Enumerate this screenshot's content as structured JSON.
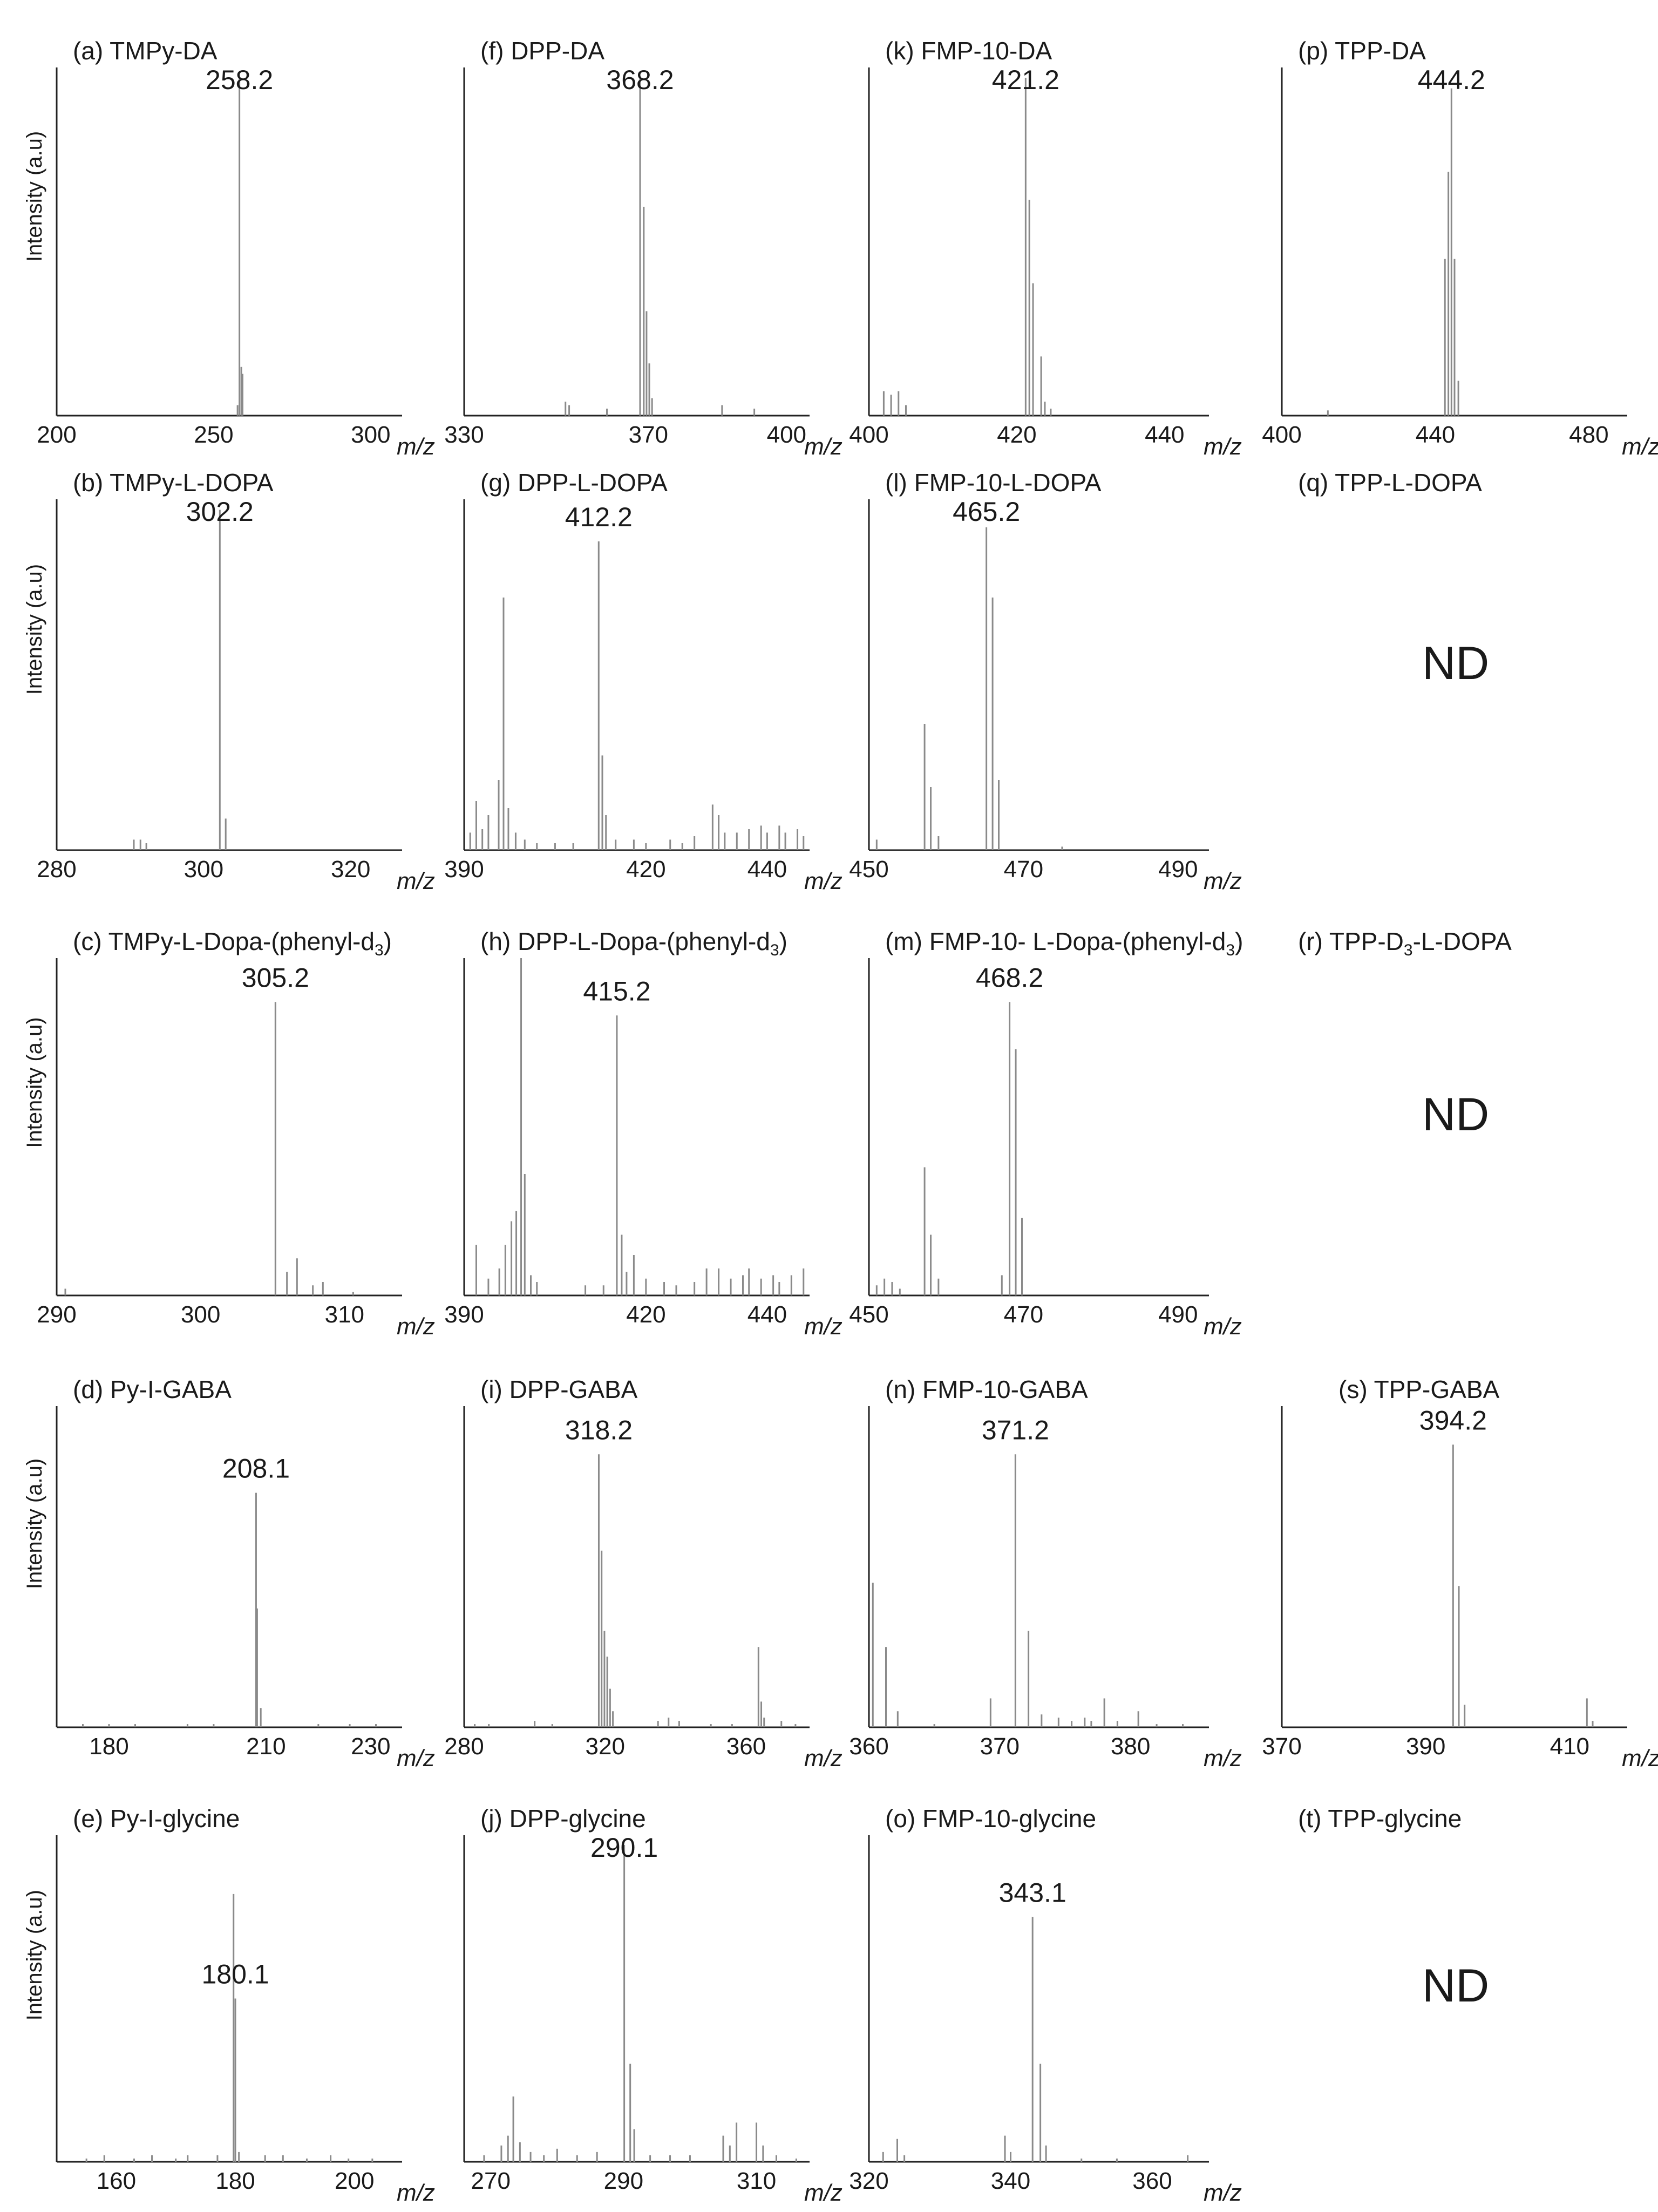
{
  "y_axis_label": "Intensity (a.u)",
  "x_unit_label": "m/z",
  "colors": {
    "axis": "#222222",
    "peak": "#8a8a8a",
    "text": "#1a1a1a"
  },
  "chart_data": [
    {
      "id": "a",
      "type": "bar",
      "title": "(a) TMPy-DA",
      "xlim": [
        200,
        310
      ],
      "xticks": [
        200,
        250,
        300
      ],
      "x_label": "m/z",
      "y_label": "Intensity (a.u)",
      "peak_label": "258.2",
      "peaks": [
        [
          258.2,
          0.97
        ],
        [
          258.8,
          0.14
        ],
        [
          259.2,
          0.12
        ],
        [
          257.6,
          0.03
        ]
      ]
    },
    {
      "id": "f",
      "type": "bar",
      "title": "(f) DPP-DA",
      "xlim": [
        330,
        405
      ],
      "xticks": [
        330,
        370,
        400
      ],
      "x_label": "m/z",
      "peak_label": "368.2",
      "peaks": [
        [
          368.2,
          0.97
        ],
        [
          369.0,
          0.6
        ],
        [
          369.6,
          0.3
        ],
        [
          370.2,
          0.15
        ],
        [
          370.8,
          0.05
        ],
        [
          352,
          0.04
        ],
        [
          352.8,
          0.03
        ],
        [
          386,
          0.03
        ],
        [
          393,
          0.02
        ],
        [
          361,
          0.02
        ]
      ]
    },
    {
      "id": "k",
      "type": "bar",
      "title": "(k) FMP-10-DA",
      "xlim": [
        400,
        446
      ],
      "xticks": [
        400,
        420,
        440
      ],
      "x_label": "m/z",
      "peak_label": "421.2",
      "peaks": [
        [
          421.2,
          0.97
        ],
        [
          421.7,
          0.62
        ],
        [
          422.2,
          0.38
        ],
        [
          423.3,
          0.17
        ],
        [
          423.8,
          0.04
        ],
        [
          402,
          0.07
        ],
        [
          403,
          0.06
        ],
        [
          404,
          0.07
        ],
        [
          405,
          0.03
        ],
        [
          424.6,
          0.02
        ]
      ]
    },
    {
      "id": "p",
      "type": "bar",
      "title": "(p) TPP-DA",
      "xlim": [
        400,
        490
      ],
      "xticks": [
        400,
        440,
        480
      ],
      "x_label": "m/z",
      "peak_label": "444.2",
      "peaks": [
        [
          442.5,
          0.45
        ],
        [
          443.4,
          0.7
        ],
        [
          444.2,
          0.94
        ],
        [
          445.0,
          0.45
        ],
        [
          446.0,
          0.1
        ],
        [
          412,
          0.015
        ]
      ]
    },
    {
      "id": "b",
      "type": "bar",
      "title": "(b) TMPy-L-DOPA",
      "xlim": [
        280,
        327
      ],
      "xticks": [
        280,
        300,
        320
      ],
      "x_label": "m/z",
      "y_label": "Intensity (a.u)",
      "peak_label": "302.2",
      "peaks": [
        [
          302.2,
          0.97
        ],
        [
          303.0,
          0.09
        ],
        [
          290.5,
          0.03
        ],
        [
          291.4,
          0.03
        ],
        [
          292.2,
          0.02
        ]
      ]
    },
    {
      "id": "g",
      "type": "bar",
      "title": "(g) DPP-L-DOPA",
      "xlim": [
        390,
        447
      ],
      "xticks": [
        390,
        420,
        440
      ],
      "x_label": "m/z",
      "peak_label": "412.2",
      "peaks": [
        [
          412.2,
          0.88
        ],
        [
          412.8,
          0.27
        ],
        [
          413.4,
          0.1
        ],
        [
          396.5,
          0.72
        ],
        [
          395.7,
          0.2
        ],
        [
          397.3,
          0.12
        ],
        [
          392,
          0.14
        ],
        [
          394,
          0.1
        ],
        [
          398.5,
          0.05
        ],
        [
          391,
          0.05
        ],
        [
          393,
          0.06
        ],
        [
          400,
          0.03
        ],
        [
          402,
          0.02
        ],
        [
          405,
          0.02
        ],
        [
          408,
          0.02
        ],
        [
          415,
          0.03
        ],
        [
          418,
          0.03
        ],
        [
          420,
          0.02
        ],
        [
          424,
          0.03
        ],
        [
          426,
          0.02
        ],
        [
          428,
          0.04
        ],
        [
          431,
          0.13
        ],
        [
          432,
          0.1
        ],
        [
          433,
          0.05
        ],
        [
          435,
          0.05
        ],
        [
          437,
          0.06
        ],
        [
          439,
          0.07
        ],
        [
          440,
          0.05
        ],
        [
          442,
          0.07
        ],
        [
          443,
          0.05
        ],
        [
          445,
          0.06
        ],
        [
          446,
          0.04
        ]
      ]
    },
    {
      "id": "l",
      "type": "bar",
      "title": "(l) FMP-10-L-DOPA",
      "xlim": [
        450,
        494
      ],
      "xticks": [
        450,
        470,
        490
      ],
      "x_label": "m/z",
      "peak_label": "465.2",
      "peaks": [
        [
          465.2,
          0.92
        ],
        [
          466.0,
          0.72
        ],
        [
          466.8,
          0.2
        ],
        [
          457.2,
          0.36
        ],
        [
          458.0,
          0.18
        ],
        [
          459.0,
          0.04
        ],
        [
          451,
          0.03
        ],
        [
          475,
          0.01
        ]
      ]
    },
    {
      "id": "q",
      "type": "none",
      "title": "(q) TPP-L-DOPA",
      "not_detected": "ND"
    },
    {
      "id": "c",
      "type": "bar",
      "title": "(c) TMPy-L-Dopa-(phenyl-d3)",
      "xlim": [
        290,
        314
      ],
      "xticks": [
        290,
        300,
        310
      ],
      "x_label": "m/z",
      "y_label": "Intensity (a.u)",
      "peak_label": "305.2",
      "peaks": [
        [
          305.2,
          0.87
        ],
        [
          306.0,
          0.07
        ],
        [
          306.7,
          0.11
        ],
        [
          307.8,
          0.03
        ],
        [
          308.5,
          0.04
        ],
        [
          290.6,
          0.02
        ],
        [
          310.6,
          0.01
        ]
      ]
    },
    {
      "id": "h",
      "type": "bar",
      "title": "(h) DPP-L-Dopa-(phenyl-d3)",
      "xlim": [
        390,
        447
      ],
      "xticks": [
        390,
        420,
        440
      ],
      "x_label": "m/z",
      "peak_label": "415.2",
      "peaks": [
        [
          399.4,
          1.0
        ],
        [
          400.0,
          0.36
        ],
        [
          398.6,
          0.25
        ],
        [
          397.8,
          0.22
        ],
        [
          396.8,
          0.15
        ],
        [
          395.8,
          0.08
        ],
        [
          392,
          0.15
        ],
        [
          394,
          0.05
        ],
        [
          401,
          0.06
        ],
        [
          402,
          0.04
        ],
        [
          415.2,
          0.83
        ],
        [
          416.0,
          0.18
        ],
        [
          416.8,
          0.07
        ],
        [
          410,
          0.03
        ],
        [
          413,
          0.03
        ],
        [
          418,
          0.12
        ],
        [
          420,
          0.05
        ],
        [
          423,
          0.04
        ],
        [
          425,
          0.03
        ],
        [
          428,
          0.04
        ],
        [
          430,
          0.08
        ],
        [
          432,
          0.08
        ],
        [
          434,
          0.05
        ],
        [
          436,
          0.06
        ],
        [
          437,
          0.08
        ],
        [
          439,
          0.05
        ],
        [
          441,
          0.06
        ],
        [
          442,
          0.04
        ],
        [
          444,
          0.06
        ],
        [
          446,
          0.08
        ]
      ]
    },
    {
      "id": "m",
      "type": "bar",
      "title": "(m) FMP-10- L-Dopa-(phenyl-d3)",
      "xlim": [
        450,
        494
      ],
      "xticks": [
        450,
        470,
        490
      ],
      "x_label": "m/z",
      "peak_label": "468.2",
      "peaks": [
        [
          468.2,
          0.87
        ],
        [
          469.0,
          0.73
        ],
        [
          469.8,
          0.23
        ],
        [
          467.2,
          0.06
        ],
        [
          457.2,
          0.38
        ],
        [
          458.0,
          0.18
        ],
        [
          459.0,
          0.05
        ],
        [
          451,
          0.03
        ],
        [
          452,
          0.05
        ],
        [
          453,
          0.04
        ],
        [
          454,
          0.02
        ]
      ]
    },
    {
      "id": "r",
      "type": "none",
      "title": "(r) TPP-D3-L-DOPA",
      "not_detected": "ND"
    },
    {
      "id": "d",
      "type": "bar",
      "title": "(d) Py-I-GABA",
      "xlim": [
        170,
        236
      ],
      "xticks": [
        180,
        210,
        230
      ],
      "x_label": "m/z",
      "y_label": "Intensity (a.u)",
      "peak_label": "208.1",
      "peaks": [
        [
          208.1,
          0.73
        ],
        [
          208.3,
          0.37
        ],
        [
          209.0,
          0.06
        ],
        [
          175,
          0.01
        ],
        [
          180,
          0.01
        ],
        [
          185,
          0.01
        ],
        [
          195,
          0.01
        ],
        [
          200,
          0.01
        ],
        [
          220,
          0.01
        ],
        [
          226,
          0.01
        ],
        [
          231,
          0.01
        ]
      ]
    },
    {
      "id": "i",
      "type": "bar",
      "title": "(i) DPP-GABA",
      "xlim": [
        280,
        378
      ],
      "xticks": [
        280,
        320,
        360
      ],
      "x_label": "m/z",
      "peak_label": "318.2",
      "peaks": [
        [
          318.2,
          0.85
        ],
        [
          319.0,
          0.55
        ],
        [
          319.8,
          0.3
        ],
        [
          320.6,
          0.22
        ],
        [
          321.4,
          0.12
        ],
        [
          322.2,
          0.05
        ],
        [
          363.5,
          0.25
        ],
        [
          364.3,
          0.08
        ],
        [
          365.1,
          0.03
        ],
        [
          283,
          0.01
        ],
        [
          287,
          0.01
        ],
        [
          300,
          0.02
        ],
        [
          305,
          0.01
        ],
        [
          335,
          0.02
        ],
        [
          338,
          0.03
        ],
        [
          341,
          0.02
        ],
        [
          350,
          0.01
        ],
        [
          356,
          0.01
        ],
        [
          370,
          0.02
        ],
        [
          374,
          0.01
        ]
      ]
    },
    {
      "id": "n",
      "type": "bar",
      "title": "(n) FMP-10-GABA",
      "xlim": [
        360,
        386
      ],
      "xticks": [
        360,
        370,
        380
      ],
      "x_label": "m/z",
      "peak_label": "371.2",
      "peaks": [
        [
          371.2,
          0.85
        ],
        [
          372.2,
          0.3
        ],
        [
          373.2,
          0.04
        ],
        [
          360.3,
          0.45
        ],
        [
          361.3,
          0.25
        ],
        [
          362.2,
          0.05
        ],
        [
          369.3,
          0.09
        ],
        [
          374.5,
          0.03
        ],
        [
          375.5,
          0.02
        ],
        [
          376.5,
          0.03
        ],
        [
          377,
          0.02
        ],
        [
          378,
          0.09
        ],
        [
          379,
          0.02
        ],
        [
          380.6,
          0.05
        ],
        [
          382,
          0.01
        ],
        [
          384,
          0.01
        ],
        [
          365,
          0.01
        ]
      ]
    },
    {
      "id": "s",
      "type": "bar",
      "title": "(s) TPP-GABA",
      "xlim": [
        370,
        418
      ],
      "xticks": [
        370,
        390,
        410
      ],
      "x_label": "m/z",
      "peak_label": "394.2",
      "peaks": [
        [
          393.8,
          0.88
        ],
        [
          394.6,
          0.44
        ],
        [
          395.4,
          0.07
        ],
        [
          412.4,
          0.09
        ],
        [
          413.2,
          0.02
        ]
      ]
    },
    {
      "id": "e",
      "type": "bar",
      "title": "(e) Py-I-glycine",
      "xlim": [
        150,
        208
      ],
      "xticks": [
        160,
        180,
        200
      ],
      "x_label": "m/z",
      "y_label": "Intensity (a.u)",
      "peak_label": "180.1",
      "peaks": [
        [
          179.7,
          0.82
        ],
        [
          180.0,
          0.5
        ],
        [
          180.6,
          0.03
        ],
        [
          155,
          0.01
        ],
        [
          158,
          0.02
        ],
        [
          163,
          0.01
        ],
        [
          166,
          0.02
        ],
        [
          170,
          0.01
        ],
        [
          172,
          0.02
        ],
        [
          177,
          0.02
        ],
        [
          185,
          0.02
        ],
        [
          188,
          0.02
        ],
        [
          192,
          0.01
        ],
        [
          196,
          0.02
        ],
        [
          199,
          0.01
        ],
        [
          203,
          0.01
        ]
      ]
    },
    {
      "id": "j",
      "type": "bar",
      "title": "(j) DPP-glycine",
      "xlim": [
        266,
        318
      ],
      "xticks": [
        270,
        290,
        310
      ],
      "x_label": "m/z",
      "peak_label": "290.1",
      "peaks": [
        [
          290.1,
          0.97
        ],
        [
          291.0,
          0.3
        ],
        [
          291.6,
          0.1
        ],
        [
          273.4,
          0.2
        ],
        [
          272.6,
          0.08
        ],
        [
          271.6,
          0.05
        ],
        [
          274.4,
          0.06
        ],
        [
          269,
          0.02
        ],
        [
          276,
          0.03
        ],
        [
          278,
          0.02
        ],
        [
          280,
          0.04
        ],
        [
          283,
          0.02
        ],
        [
          286,
          0.03
        ],
        [
          294,
          0.02
        ],
        [
          297,
          0.02
        ],
        [
          300,
          0.02
        ],
        [
          305,
          0.08
        ],
        [
          306,
          0.05
        ],
        [
          307,
          0.12
        ],
        [
          310,
          0.12
        ],
        [
          311,
          0.05
        ],
        [
          313,
          0.02
        ],
        [
          316,
          0.01
        ]
      ]
    },
    {
      "id": "o",
      "type": "bar",
      "title": "(o) FMP-10-glycine",
      "xlim": [
        320,
        368
      ],
      "xticks": [
        320,
        340,
        360
      ],
      "x_label": "m/z",
      "peak_label": "343.1",
      "peaks": [
        [
          343.1,
          0.75
        ],
        [
          344.2,
          0.3
        ],
        [
          345.0,
          0.05
        ],
        [
          322,
          0.03
        ],
        [
          324,
          0.07
        ],
        [
          325,
          0.02
        ],
        [
          339.2,
          0.08
        ],
        [
          340,
          0.03
        ],
        [
          350,
          0.01
        ],
        [
          355,
          0.01
        ],
        [
          365,
          0.02
        ]
      ]
    },
    {
      "id": "t",
      "type": "none",
      "title": "(t) TPP-glycine",
      "not_detected": "ND"
    }
  ]
}
